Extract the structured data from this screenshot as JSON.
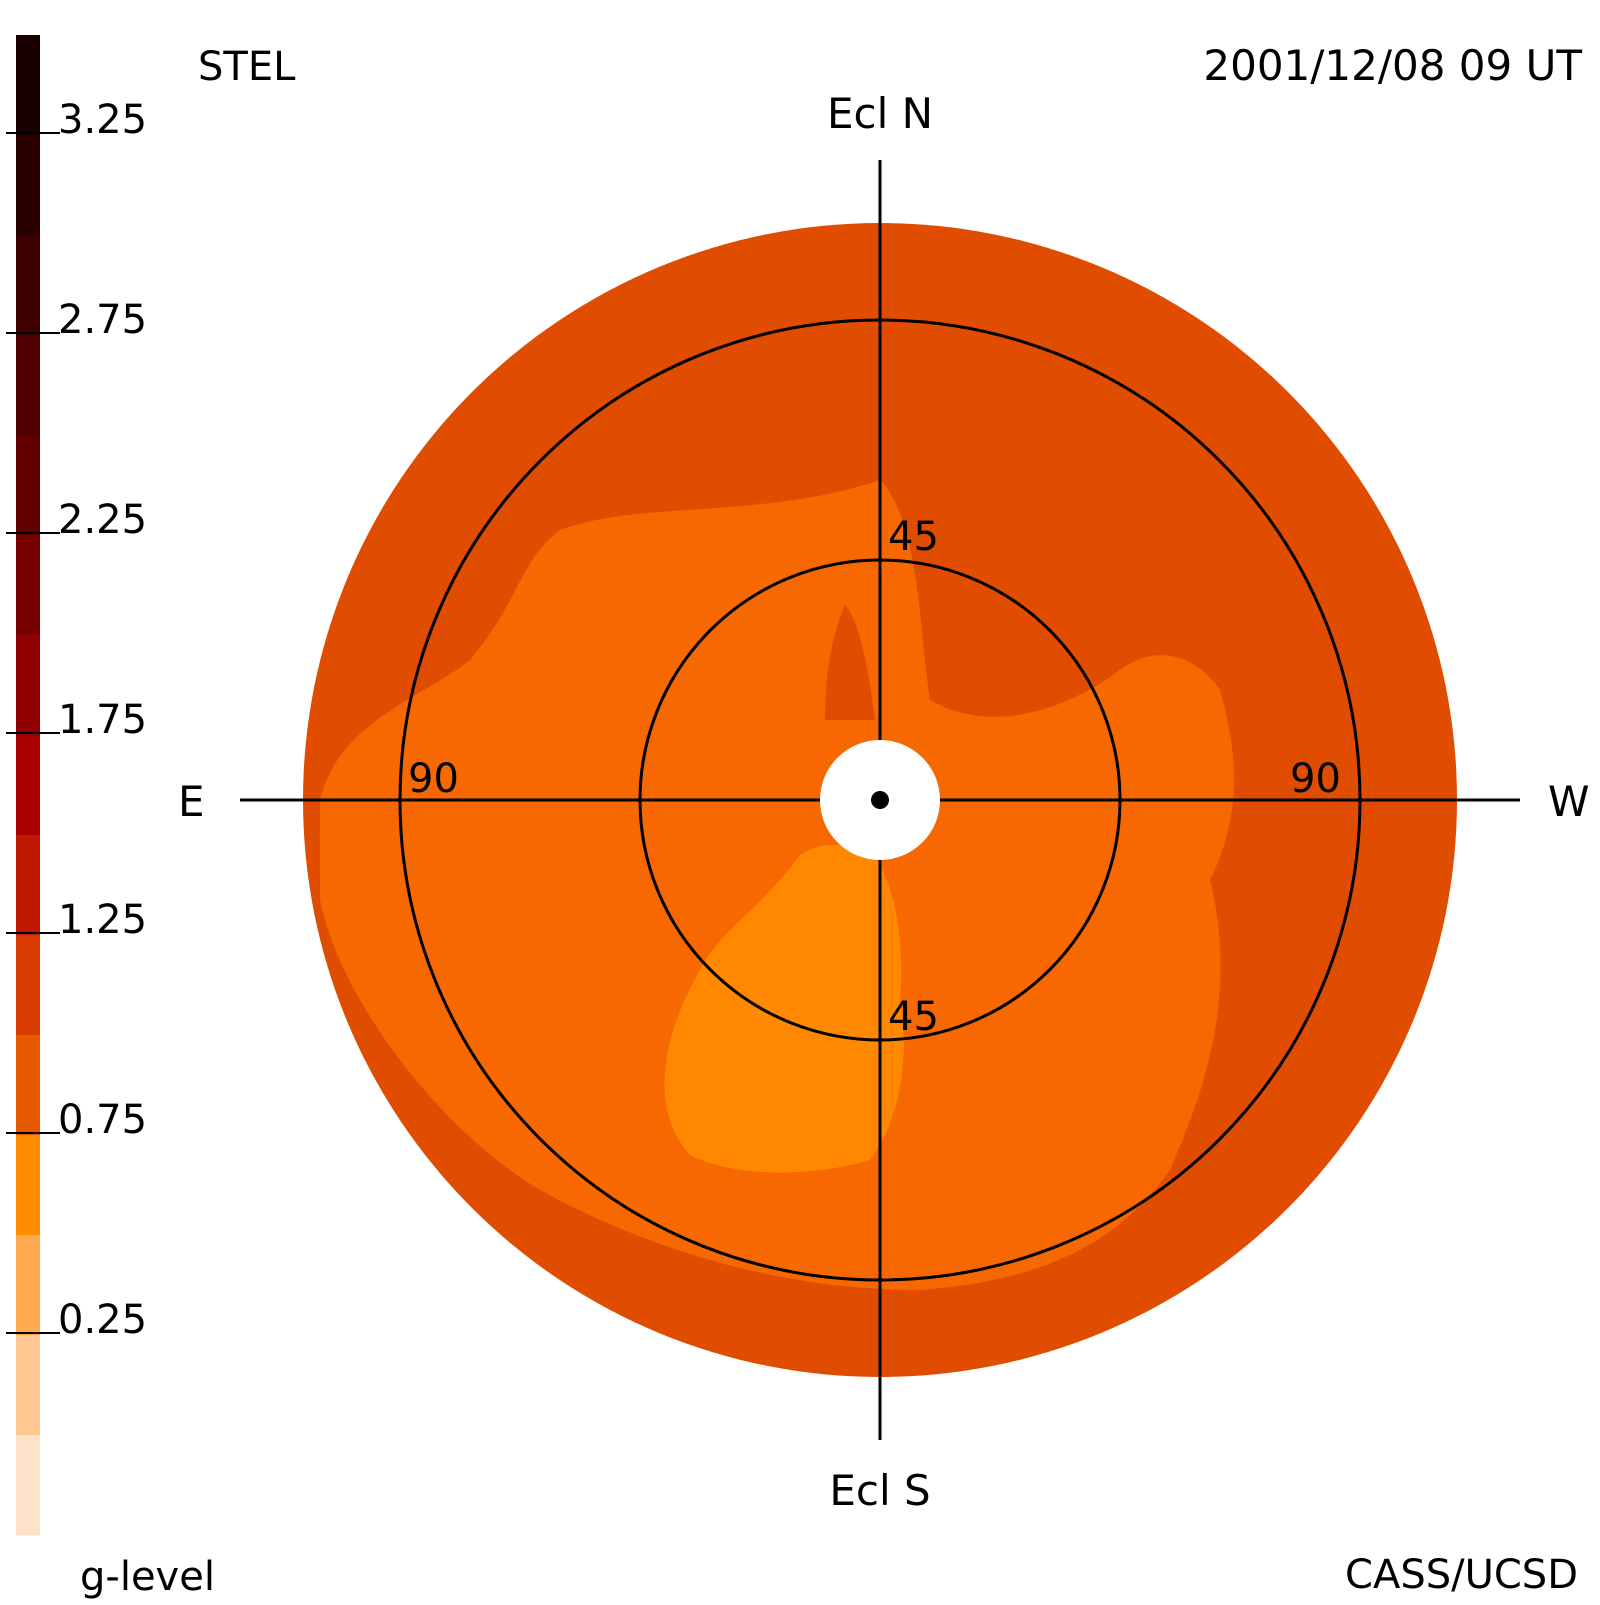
{
  "header": {
    "station": "STEL",
    "timestamp": "2001/12/08 09 UT"
  },
  "footer": {
    "scale_label": "g-level",
    "credit": "CASS/UCSD"
  },
  "directions": {
    "north": "Ecl N",
    "south": "Ecl S",
    "east": "E",
    "west": "W"
  },
  "ring_labels": {
    "inner_top": "45",
    "inner_bottom": "45",
    "outer_left": "90",
    "outer_right": "90"
  },
  "colorbar": {
    "tick_labels": [
      "3.25",
      "2.75",
      "2.25",
      "1.75",
      "1.25",
      "0.75",
      "0.25"
    ],
    "bands": [
      "#180000",
      "#2a0000",
      "#3c0000",
      "#4e0000",
      "#620000",
      "#780000",
      "#900000",
      "#a80000",
      "#c01800",
      "#d83c00",
      "#e85a00",
      "#ff8c00",
      "#ffaa50",
      "#ffc890",
      "#ffe2c8"
    ]
  },
  "sky_map": {
    "colors": {
      "level_1_25": "#e04c00",
      "level_1_00": "#f86800",
      "level_0_75": "#ff8800",
      "occulter": "#ffffff",
      "lines": "#000000"
    }
  }
}
